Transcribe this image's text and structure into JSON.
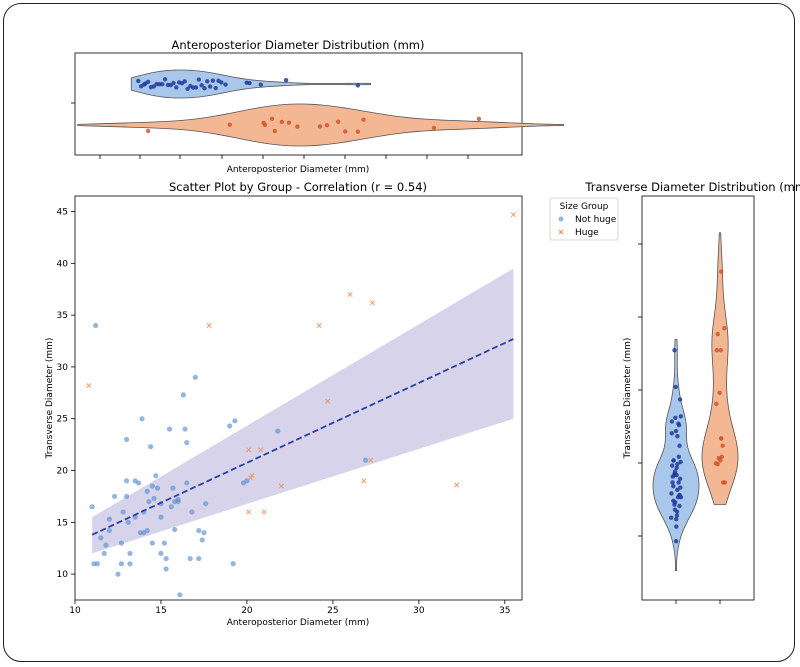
{
  "colors": {
    "not_huge": "#5B8FD1",
    "not_huge_dark": "#1F3C9E",
    "huge": "#EE8F58",
    "huge_dark": "#D2562A",
    "regression": "#2A3FA6",
    "ci_band": "#CFCBE6",
    "violin_blue": "#A9C7EA",
    "violin_orange": "#F3B794"
  },
  "chart_data": [
    {
      "id": "scatter",
      "type": "scatter",
      "title": "Scatter Plot by Group - Correlation (r = 0.54)",
      "xlabel": "Anteroposterior Diameter (mm)",
      "ylabel": "Transverse Diameter (mm)",
      "xlim": [
        10,
        36
      ],
      "ylim": [
        7.5,
        46.5
      ],
      "xticks": [
        10,
        15,
        20,
        25,
        30,
        35
      ],
      "yticks": [
        10,
        15,
        20,
        25,
        30,
        35,
        40,
        45
      ],
      "legend": {
        "title": "Size Group",
        "position": "outside-top-right",
        "entries": [
          "Not huge",
          "Huge"
        ]
      },
      "series": [
        {
          "name": "Not huge",
          "marker": "circle",
          "points": [
            [
              11.2,
              34
            ],
            [
              11,
              16.5
            ],
            [
              11.1,
              11
            ],
            [
              11.3,
              11
            ],
            [
              11.5,
              13.5
            ],
            [
              11.7,
              12
            ],
            [
              11.8,
              12.8
            ],
            [
              12,
              14.2
            ],
            [
              12,
              15.3
            ],
            [
              12.3,
              17.5
            ],
            [
              12.5,
              10
            ],
            [
              12.7,
              11
            ],
            [
              12.7,
              13
            ],
            [
              12.8,
              16
            ],
            [
              13,
              23
            ],
            [
              13,
              19
            ],
            [
              13,
              17.5
            ],
            [
              13.1,
              15
            ],
            [
              13.2,
              12
            ],
            [
              13.2,
              11
            ],
            [
              13.5,
              19
            ],
            [
              13.5,
              15.5
            ],
            [
              13.7,
              18.8
            ],
            [
              13.8,
              14
            ],
            [
              13.9,
              25
            ],
            [
              14,
              14
            ],
            [
              14,
              16
            ],
            [
              14.2,
              18
            ],
            [
              14.2,
              14.2
            ],
            [
              14.3,
              17
            ],
            [
              14.4,
              22.3
            ],
            [
              14.5,
              18.5
            ],
            [
              14.5,
              13
            ],
            [
              14.6,
              17.3
            ],
            [
              14.7,
              19.5
            ],
            [
              14.8,
              18.3
            ],
            [
              15,
              12
            ],
            [
              15,
              15.5
            ],
            [
              15,
              16.8
            ],
            [
              15.2,
              13
            ],
            [
              15.3,
              11.5
            ],
            [
              15.3,
              10.5
            ],
            [
              15.5,
              24
            ],
            [
              15.6,
              16.5
            ],
            [
              15.7,
              18.3
            ],
            [
              15.8,
              17
            ],
            [
              15.8,
              14.3
            ],
            [
              16,
              17.2
            ],
            [
              16,
              17
            ],
            [
              16.1,
              8
            ],
            [
              16.3,
              27.3
            ],
            [
              16.4,
              24
            ],
            [
              16.5,
              22.7
            ],
            [
              16.5,
              18.8
            ],
            [
              16.7,
              11.5
            ],
            [
              16.8,
              16
            ],
            [
              17,
              29
            ],
            [
              17.2,
              14.2
            ],
            [
              17.2,
              11.5
            ],
            [
              17.4,
              13.3
            ],
            [
              17.5,
              14
            ],
            [
              17.6,
              16.8
            ],
            [
              19,
              24.3
            ],
            [
              19.2,
              11
            ],
            [
              19.3,
              24.8
            ],
            [
              19.8,
              18.8
            ],
            [
              20,
              19
            ],
            [
              21.8,
              23.8
            ],
            [
              26.9,
              21
            ]
          ]
        },
        {
          "name": "Huge",
          "marker": "x",
          "points": [
            [
              10.8,
              28.2
            ],
            [
              17.8,
              34
            ],
            [
              20.1,
              22
            ],
            [
              20.1,
              16
            ],
            [
              20.2,
              19.3
            ],
            [
              20.3,
              19.5
            ],
            [
              20.8,
              22
            ],
            [
              21,
              16
            ],
            [
              22,
              18.5
            ],
            [
              24.2,
              34
            ],
            [
              24.7,
              26.7
            ],
            [
              26,
              37
            ],
            [
              26.8,
              19
            ],
            [
              27.2,
              21
            ],
            [
              27.3,
              36.2
            ],
            [
              32.2,
              18.6
            ],
            [
              35.5,
              44.7
            ]
          ]
        }
      ],
      "regression": {
        "x": [
          11,
          35.5
        ],
        "y": [
          13.8,
          32.7
        ],
        "ci_lower": [
          12,
          25
        ],
        "ci_upper": [
          15.5,
          39.5
        ]
      }
    },
    {
      "id": "ap_violin",
      "type": "violin",
      "orientation": "horizontal",
      "title": "Anteroposterior Diameter Distribution (mm)",
      "xlabel": "Anteroposterior Diameter (mm)",
      "groups": [
        {
          "name": "Not huge",
          "range": [
            10.8,
            27.8
          ],
          "points": [
            11.3,
            11.5,
            11.7,
            11.8,
            12,
            12.2,
            12.4,
            12.6,
            12.8,
            13,
            13.2,
            13.4,
            13.6,
            13.8,
            14,
            14.2,
            14.4,
            14.6,
            14.8,
            15,
            15.2,
            15.4,
            15.6,
            15.8,
            16,
            16.2,
            16.4,
            16.6,
            16.8,
            17,
            17.2,
            17.5,
            19,
            19.2,
            20,
            21.8,
            26.9
          ]
        },
        {
          "name": "Huge",
          "range": [
            7,
            41.5
          ],
          "points": [
            12,
            17.8,
            20.2,
            20.3,
            20.8,
            21,
            21.5,
            22,
            22.6,
            24.2,
            24.7,
            25.5,
            26,
            26.9,
            27.3,
            32.3,
            35.5
          ]
        }
      ]
    },
    {
      "id": "td_violin",
      "type": "violin",
      "orientation": "vertical",
      "title": "Transverse Diameter Distribution (mm)",
      "ylabel": "Transverse Diameter (mm)",
      "groups": [
        {
          "name": "Not huge",
          "range": [
            4,
            35.5
          ],
          "points": [
            8,
            10,
            11,
            11.2,
            11.5,
            12,
            12.3,
            12.8,
            13,
            13.3,
            13.5,
            14,
            14,
            14.2,
            14.3,
            14.5,
            15,
            15.3,
            15.5,
            16,
            16,
            16.5,
            16.8,
            17,
            17,
            17.2,
            17.5,
            18,
            18.3,
            18.5,
            18.8,
            19,
            19,
            19.5,
            21,
            22.3,
            22.7,
            23,
            23.8,
            24,
            24.3,
            24.8,
            25,
            27.3,
            29,
            34
          ]
        },
        {
          "name": "Huge",
          "range": [
            13,
            50
          ],
          "points": [
            16,
            16,
            18.5,
            18.6,
            19,
            19.3,
            19.5,
            21,
            22,
            22,
            26.7,
            28.2,
            34,
            34,
            36.2,
            37,
            44.7
          ]
        }
      ]
    }
  ]
}
